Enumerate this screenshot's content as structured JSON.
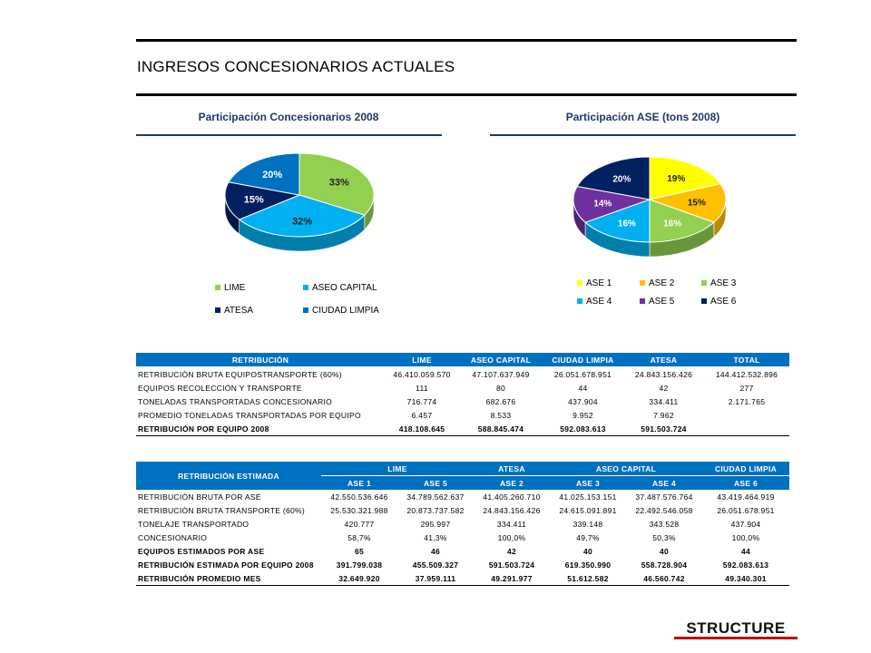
{
  "header": {
    "title": "INGRESOS CONCESIONARIOS ACTUALES"
  },
  "chart_left": {
    "title": "Participación Concesionarios 2008",
    "legend": [
      "LIME",
      "ASEO CAPITAL",
      "ATESA",
      "CIUDAD LIMPIA"
    ]
  },
  "chart_right": {
    "title": "Participación ASE (tons 2008)",
    "legend": [
      "ASE 1",
      "ASE 2",
      "ASE 3",
      "ASE 4",
      "ASE 5",
      "ASE 6"
    ]
  },
  "chart_data": [
    {
      "type": "pie",
      "title": "Participación Concesionarios 2008",
      "categories": [
        "LIME",
        "ASEO CAPITAL",
        "ATESA",
        "CIUDAD LIMPIA"
      ],
      "values": [
        33,
        32,
        15,
        20
      ],
      "labels": [
        "33%",
        "32%",
        "15%",
        "20%"
      ],
      "colors": [
        "#92D050",
        "#00B0F0",
        "#002060",
        "#0070C0"
      ],
      "legend_position": "bottom"
    },
    {
      "type": "pie",
      "title": "Participación ASE (tons 2008)",
      "categories": [
        "ASE 1",
        "ASE 2",
        "ASE 3",
        "ASE 4",
        "ASE 5",
        "ASE 6"
      ],
      "values": [
        19,
        15,
        16,
        16,
        14,
        20
      ],
      "labels": [
        "19%",
        "15%",
        "16%",
        "16%",
        "14%",
        "20%"
      ],
      "colors": [
        "#FFFF00",
        "#FFC000",
        "#92D050",
        "#00B0F0",
        "#7030A0",
        "#002060"
      ],
      "legend_position": "bottom"
    }
  ],
  "table1": {
    "headers": [
      "RETRIBUCIÓN",
      "LIME",
      "ASEO CAPITAL",
      "CIUDAD LIMPIA",
      "ATESA",
      "TOTAL"
    ],
    "rows": [
      [
        "RETRIBUCIÓN BRUTA EQUIPOSTRANSPORTE (60%)",
        "46.410.059.570",
        "47.107.637.949",
        "26.051.678.951",
        "24.843.156.426",
        "144.412.532.896"
      ],
      [
        "EQUIPOS RECOLECCIÓN Y TRANSPORTE",
        "111",
        "80",
        "44",
        "42",
        "277"
      ],
      [
        "TONELADAS TRANSPORTADAS CONCESIONARIO",
        "716.774",
        "682.676",
        "437.904",
        "334.411",
        "2.171.765"
      ],
      [
        "PROMEDIO TONELADAS TRANSPORTADAS POR EQUIPO",
        "6.457",
        "8.533",
        "9.952",
        "7.962",
        ""
      ],
      [
        "RETRIBUCIÓN POR EQUIPO 2008",
        "418.108.645",
        "588.845.474",
        "592.083.613",
        "591.503.724",
        ""
      ]
    ]
  },
  "table2": {
    "title": "RETRIBUCIÓN ESTIMADA",
    "groups": [
      "LIME",
      "ATESA",
      "ASEO CAPITAL",
      "CIUDAD LIMPIA"
    ],
    "subheaders": [
      "ASE 1",
      "ASE 5",
      "ASE 2",
      "ASE 3",
      "ASE 4",
      "ASE 6"
    ],
    "rows": [
      [
        "RETRIBUCIÓN BRUTA POR ASE",
        "42.550.536.646",
        "34.789.562.637",
        "41.405.260.710",
        "41.025.153.151",
        "37.487.576.764",
        "43.419.464.919"
      ],
      [
        "RETRIBUCIÓN BRUTA TRANSPORTE (60%)",
        "25.530.321.988",
        "20.873.737.582",
        "24.843.156.426",
        "24.615.091.891",
        "22.492.546.058",
        "26.051.678.951"
      ],
      [
        "TONELAJE TRANSPORTADO",
        "420.777",
        "295.997",
        "334.411",
        "339.148",
        "343.528",
        "437.904"
      ],
      [
        "CONCESIONARIO",
        "58,7%",
        "41,3%",
        "100,0%",
        "49,7%",
        "50,3%",
        "100,0%"
      ],
      [
        "EQUIPOS ESTIMADOS POR ASE",
        "65",
        "46",
        "42",
        "40",
        "40",
        "44"
      ],
      [
        "RETRIBUCIÓN ESTIMADA POR EQUIPO 2008",
        "391.799.038",
        "455.509.327",
        "591.503.724",
        "619.350.990",
        "558.728.904",
        "592.083.613"
      ],
      [
        "RETRIBUCIÓN PROMEDIO MES",
        "32.649.920",
        "37.959.111",
        "49.291.977",
        "51.612.582",
        "46.560.742",
        "49.340.301"
      ]
    ]
  },
  "logo": {
    "text": "STRUCTURE"
  }
}
